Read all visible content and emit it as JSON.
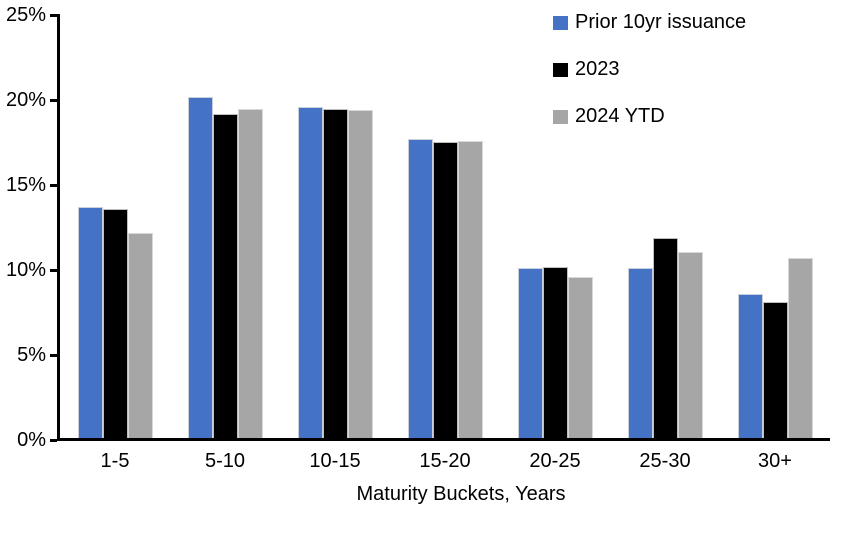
{
  "chart_data": {
    "type": "bar",
    "title": "",
    "categories": [
      "1-5",
      "5-10",
      "10-15",
      "15-20",
      "20-25",
      "25-30",
      "30+"
    ],
    "series": [
      {
        "name": "Prior 10yr issuance",
        "color": "#4472C4",
        "values": [
          13.7,
          20.2,
          19.6,
          17.7,
          10.1,
          10.1,
          8.6
        ]
      },
      {
        "name": "2023",
        "color": "#000000",
        "values": [
          13.6,
          19.2,
          19.45,
          17.55,
          10.2,
          11.9,
          8.1
        ]
      },
      {
        "name": "2024 YTD",
        "color": "#A6A6A6",
        "values": [
          12.2,
          19.5,
          19.4,
          17.6,
          9.6,
          11.05,
          10.7
        ]
      }
    ],
    "xlabel": "Maturity Buckets, Years",
    "ylabel": "",
    "ylim": [
      0,
      25
    ],
    "ytick_step": 5,
    "yticks": [
      {
        "value": 0,
        "label": "0%"
      },
      {
        "value": 5,
        "label": "5%"
      },
      {
        "value": 10,
        "label": "10%"
      },
      {
        "value": 15,
        "label": "15%"
      },
      {
        "value": 20,
        "label": "20%"
      },
      {
        "value": 25,
        "label": "25%"
      }
    ],
    "grid": false,
    "legend_position": "top-right",
    "axis_color": "#000000",
    "background_color": "#FFFFFF"
  }
}
